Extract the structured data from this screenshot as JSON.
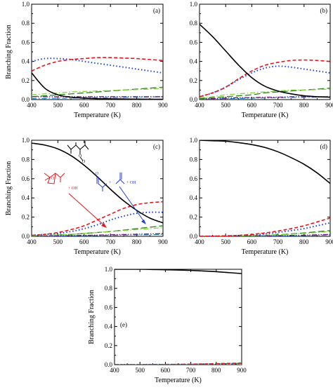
{
  "chart_data": [
    {
      "type": "line",
      "panel_label": "(a)",
      "xlabel": "Temperature (K)",
      "ylabel": "Branching Fraction",
      "xlim": [
        400,
        900
      ],
      "ylim": [
        0,
        1.0
      ],
      "xticks": [
        "400",
        "500",
        "600",
        "700",
        "800",
        "900"
      ],
      "yticks": [
        "0.0",
        "0.2",
        "0.4",
        "0.6",
        "0.8",
        "1.0"
      ],
      "x": [
        400,
        450,
        500,
        550,
        600,
        650,
        700,
        750,
        800,
        850,
        900
      ],
      "series": [
        {
          "style": "solid",
          "color": "#000000",
          "values": [
            0.28,
            0.12,
            0.05,
            0.025,
            0.015,
            0.01,
            0.008,
            0.006,
            0.005,
            0.004,
            0.003
          ]
        },
        {
          "style": "dashed",
          "color": "#e8141c",
          "values": [
            0.3,
            0.36,
            0.4,
            0.42,
            0.43,
            0.44,
            0.44,
            0.435,
            0.43,
            0.42,
            0.41
          ]
        },
        {
          "style": "dotted",
          "color": "#1f3fd1",
          "values": [
            0.4,
            0.43,
            0.43,
            0.42,
            0.4,
            0.38,
            0.36,
            0.34,
            0.32,
            0.3,
            0.28
          ]
        },
        {
          "style": "dashdot",
          "color": "#7dd433",
          "values": [
            0.05,
            0.06,
            0.07,
            0.08,
            0.085,
            0.09,
            0.095,
            0.1,
            0.105,
            0.11,
            0.115
          ]
        },
        {
          "style": "longdash",
          "color": "#2e7d1a",
          "values": [
            0.03,
            0.04,
            0.05,
            0.06,
            0.07,
            0.08,
            0.09,
            0.1,
            0.11,
            0.12,
            0.13
          ]
        },
        {
          "style": "dashdotdot",
          "color": "#6a1b7a",
          "values": [
            0.03,
            0.03,
            0.03,
            0.03,
            0.03,
            0.03,
            0.03,
            0.03,
            0.03,
            0.03,
            0.03
          ]
        },
        {
          "style": "dashdot",
          "color": "#1a8ad4",
          "values": [
            0.01,
            0.012,
            0.014,
            0.016,
            0.018,
            0.02,
            0.022,
            0.024,
            0.026,
            0.028,
            0.03
          ]
        }
      ]
    },
    {
      "type": "line",
      "panel_label": "(b)",
      "xlabel": "Temperature (K)",
      "ylabel": "",
      "xlim": [
        400,
        900
      ],
      "ylim": [
        0,
        1.0
      ],
      "xticks": [
        "400",
        "500",
        "600",
        "700",
        "800",
        "900"
      ],
      "yticks": [
        "0.0",
        "0.2",
        "0.4",
        "0.6",
        "0.8",
        "1.0"
      ],
      "x": [
        400,
        450,
        500,
        550,
        600,
        650,
        700,
        750,
        800,
        850,
        900
      ],
      "series": [
        {
          "style": "solid",
          "color": "#000000",
          "values": [
            0.79,
            0.66,
            0.51,
            0.36,
            0.23,
            0.14,
            0.09,
            0.06,
            0.04,
            0.03,
            0.025
          ]
        },
        {
          "style": "dashed",
          "color": "#e8141c",
          "values": [
            0.03,
            0.07,
            0.13,
            0.22,
            0.3,
            0.36,
            0.39,
            0.41,
            0.415,
            0.41,
            0.4
          ]
        },
        {
          "style": "dotted",
          "color": "#1f3fd1",
          "values": [
            0.03,
            0.07,
            0.13,
            0.21,
            0.28,
            0.33,
            0.35,
            0.34,
            0.32,
            0.3,
            0.28
          ]
        },
        {
          "style": "dashdot",
          "color": "#7dd433",
          "values": [
            0.02,
            0.03,
            0.05,
            0.06,
            0.07,
            0.08,
            0.09,
            0.1,
            0.1,
            0.105,
            0.11
          ]
        },
        {
          "style": "longdash",
          "color": "#2e7d1a",
          "values": [
            0.01,
            0.02,
            0.03,
            0.04,
            0.05,
            0.07,
            0.08,
            0.09,
            0.1,
            0.11,
            0.12
          ]
        },
        {
          "style": "dashdotdot",
          "color": "#6a1b7a",
          "values": [
            0.01,
            0.01,
            0.015,
            0.02,
            0.02,
            0.025,
            0.025,
            0.03,
            0.03,
            0.03,
            0.03
          ]
        },
        {
          "style": "dashdot",
          "color": "#1a8ad4",
          "values": [
            0.005,
            0.007,
            0.01,
            0.012,
            0.015,
            0.017,
            0.02,
            0.022,
            0.024,
            0.026,
            0.028
          ]
        }
      ]
    },
    {
      "type": "line",
      "panel_label": "(c)",
      "xlabel": "Temperature (K)",
      "ylabel": "Branching Fraction",
      "xlim": [
        400,
        900
      ],
      "ylim": [
        0,
        1.0
      ],
      "xticks": [
        "400",
        "500",
        "600",
        "700",
        "800",
        "900"
      ],
      "yticks": [
        "0.0",
        "0.2",
        "0.4",
        "0.6",
        "0.8",
        "1.0"
      ],
      "x": [
        400,
        450,
        500,
        550,
        600,
        650,
        700,
        750,
        800,
        850,
        900
      ],
      "annotations": [
        "+ OH",
        "+",
        "+ OH"
      ],
      "series": [
        {
          "style": "solid",
          "color": "#000000",
          "values": [
            0.97,
            0.95,
            0.91,
            0.84,
            0.74,
            0.62,
            0.49,
            0.37,
            0.27,
            0.19,
            0.14
          ]
        },
        {
          "style": "dashed",
          "color": "#e8141c",
          "values": [
            0.01,
            0.02,
            0.04,
            0.07,
            0.11,
            0.17,
            0.23,
            0.29,
            0.33,
            0.35,
            0.36
          ]
        },
        {
          "style": "dotted",
          "color": "#1f3fd1",
          "values": [
            0.01,
            0.02,
            0.03,
            0.05,
            0.08,
            0.12,
            0.17,
            0.21,
            0.24,
            0.25,
            0.25
          ]
        },
        {
          "style": "dashdot",
          "color": "#7dd433",
          "values": [
            0.005,
            0.01,
            0.015,
            0.02,
            0.03,
            0.04,
            0.05,
            0.06,
            0.07,
            0.08,
            0.09
          ]
        },
        {
          "style": "longdash",
          "color": "#2e7d1a",
          "values": [
            0.005,
            0.01,
            0.015,
            0.02,
            0.03,
            0.04,
            0.05,
            0.065,
            0.08,
            0.095,
            0.11
          ]
        },
        {
          "style": "dashdotdot",
          "color": "#6a1b7a",
          "values": [
            0.002,
            0.004,
            0.006,
            0.008,
            0.01,
            0.013,
            0.016,
            0.019,
            0.022,
            0.025,
            0.028
          ]
        },
        {
          "style": "dashdot",
          "color": "#1a8ad4",
          "values": [
            0.001,
            0.002,
            0.003,
            0.005,
            0.007,
            0.009,
            0.011,
            0.013,
            0.015,
            0.017,
            0.02
          ]
        }
      ]
    },
    {
      "type": "line",
      "panel_label": "(d)",
      "xlabel": "Temperature (K)",
      "ylabel": "",
      "xlim": [
        400,
        900
      ],
      "ylim": [
        0,
        1.0
      ],
      "xticks": [
        "400",
        "500",
        "600",
        "700",
        "800",
        "900"
      ],
      "yticks": [
        "0.0",
        "0.2",
        "0.4",
        "0.6",
        "0.8",
        "1.0"
      ],
      "x": [
        400,
        450,
        500,
        550,
        600,
        650,
        700,
        750,
        800,
        850,
        900
      ],
      "series": [
        {
          "style": "solid",
          "color": "#000000",
          "values": [
            1.0,
            0.995,
            0.99,
            0.975,
            0.955,
            0.925,
            0.88,
            0.82,
            0.75,
            0.66,
            0.55
          ]
        },
        {
          "style": "dashed",
          "color": "#e8141c",
          "values": [
            0.0,
            0.002,
            0.005,
            0.01,
            0.02,
            0.035,
            0.055,
            0.08,
            0.11,
            0.15,
            0.19
          ]
        },
        {
          "style": "dotted",
          "color": "#1f3fd1",
          "values": [
            0.0,
            0.002,
            0.004,
            0.008,
            0.015,
            0.025,
            0.04,
            0.06,
            0.08,
            0.11,
            0.14
          ]
        },
        {
          "style": "dashdot",
          "color": "#7dd433",
          "values": [
            0.0,
            0.001,
            0.002,
            0.004,
            0.007,
            0.011,
            0.016,
            0.022,
            0.03,
            0.04,
            0.05
          ]
        },
        {
          "style": "longdash",
          "color": "#2e7d1a",
          "values": [
            0.0,
            0.001,
            0.002,
            0.004,
            0.007,
            0.011,
            0.017,
            0.025,
            0.035,
            0.048,
            0.06
          ]
        },
        {
          "style": "dashdotdot",
          "color": "#6a1b7a",
          "values": [
            0.0,
            0.0,
            0.001,
            0.002,
            0.003,
            0.005,
            0.007,
            0.009,
            0.012,
            0.016,
            0.02
          ]
        },
        {
          "style": "dashdot",
          "color": "#1a8ad4",
          "values": [
            0.0,
            0.0,
            0.001,
            0.001,
            0.002,
            0.003,
            0.004,
            0.006,
            0.008,
            0.011,
            0.015
          ]
        }
      ]
    },
    {
      "type": "line",
      "panel_label": "(e)",
      "xlabel": "Temperature (K)",
      "ylabel": "Branching Fraction",
      "xlim": [
        400,
        900
      ],
      "ylim": [
        0,
        1.0
      ],
      "xticks": [
        "400",
        "500",
        "600",
        "700",
        "800",
        "900"
      ],
      "yticks": [
        "0.0",
        "0.2",
        "0.4",
        "0.6",
        "0.8",
        "1.0"
      ],
      "x": [
        400,
        450,
        500,
        550,
        600,
        650,
        700,
        750,
        800,
        850,
        900
      ],
      "series": [
        {
          "style": "solid",
          "color": "#000000",
          "values": [
            1.0,
            1.0,
            1.0,
            0.998,
            0.995,
            0.992,
            0.988,
            0.982,
            0.975,
            0.965,
            0.955
          ]
        },
        {
          "style": "dashed",
          "color": "#e8141c",
          "values": [
            0.0,
            0.0,
            0.0,
            0.001,
            0.002,
            0.003,
            0.005,
            0.007,
            0.01,
            0.013,
            0.016
          ]
        },
        {
          "style": "dotted",
          "color": "#1f3fd1",
          "values": [
            0.0,
            0.0,
            0.0,
            0.001,
            0.001,
            0.002,
            0.003,
            0.005,
            0.007,
            0.009,
            0.012
          ]
        },
        {
          "style": "dashdot",
          "color": "#7dd433",
          "values": [
            0.0,
            0.0,
            0.0,
            0.001,
            0.001,
            0.002,
            0.002,
            0.003,
            0.004,
            0.005,
            0.006
          ]
        },
        {
          "style": "longdash",
          "color": "#2e7d1a",
          "values": [
            0.0,
            0.0,
            0.0,
            0.001,
            0.002,
            0.003,
            0.004,
            0.006,
            0.008,
            0.011,
            0.014
          ]
        },
        {
          "style": "dashdotdot",
          "color": "#6a1b7a",
          "values": [
            0.0,
            0.0,
            0.0,
            0.0,
            0.001,
            0.001,
            0.002,
            0.002,
            0.003,
            0.004,
            0.005
          ]
        },
        {
          "style": "dashdot",
          "color": "#1a8ad4",
          "values": [
            0.0,
            0.0,
            0.0,
            0.0,
            0.0,
            0.001,
            0.001,
            0.002,
            0.002,
            0.003,
            0.004
          ]
        }
      ]
    }
  ]
}
